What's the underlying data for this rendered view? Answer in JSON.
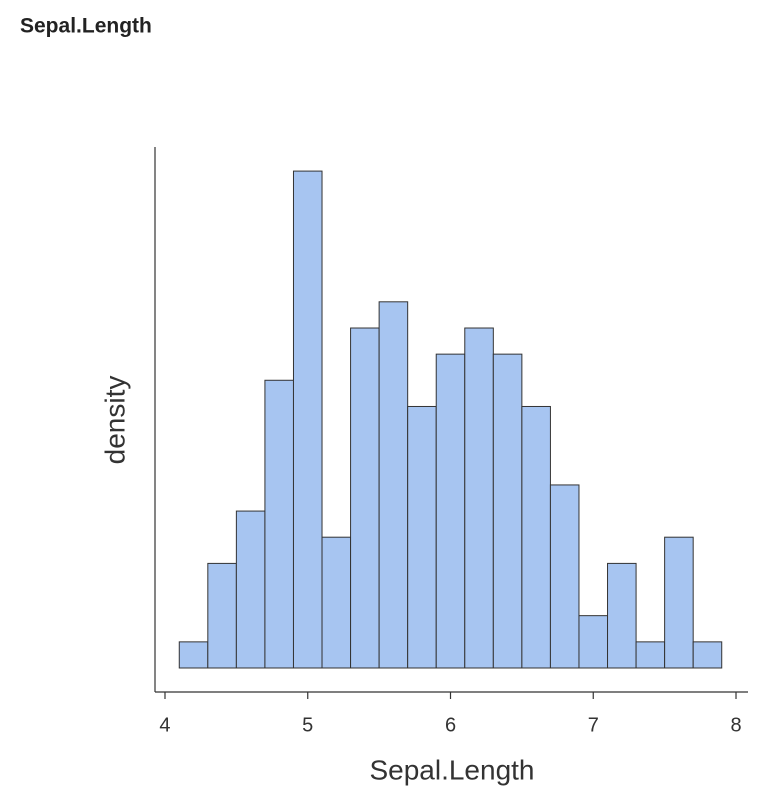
{
  "chart_data": {
    "type": "histogram",
    "title": "Sepal.Length",
    "xlabel": "Sepal.Length",
    "ylabel": "density",
    "bins": [
      4.1,
      4.3,
      4.5,
      4.7,
      4.9,
      5.1,
      5.3,
      5.5,
      5.7,
      5.9,
      6.1,
      6.3,
      6.5,
      6.7,
      6.9,
      7.1,
      7.3,
      7.5,
      7.7,
      7.9
    ],
    "values": [
      0.0333,
      0.1333,
      0.2,
      0.3667,
      0.6333,
      0.1667,
      0.4333,
      0.4667,
      0.3333,
      0.4,
      0.4333,
      0.4,
      0.3333,
      0.2333,
      0.0667,
      0.1333,
      0.0333,
      0.1667,
      0.0333
    ],
    "color": "#a7c5f1",
    "xlim": [
      3.93,
      8.084
    ],
    "xticks": [
      4,
      5,
      6,
      7,
      8
    ],
    "ylim": [
      -0.0306,
      0.664
    ]
  }
}
